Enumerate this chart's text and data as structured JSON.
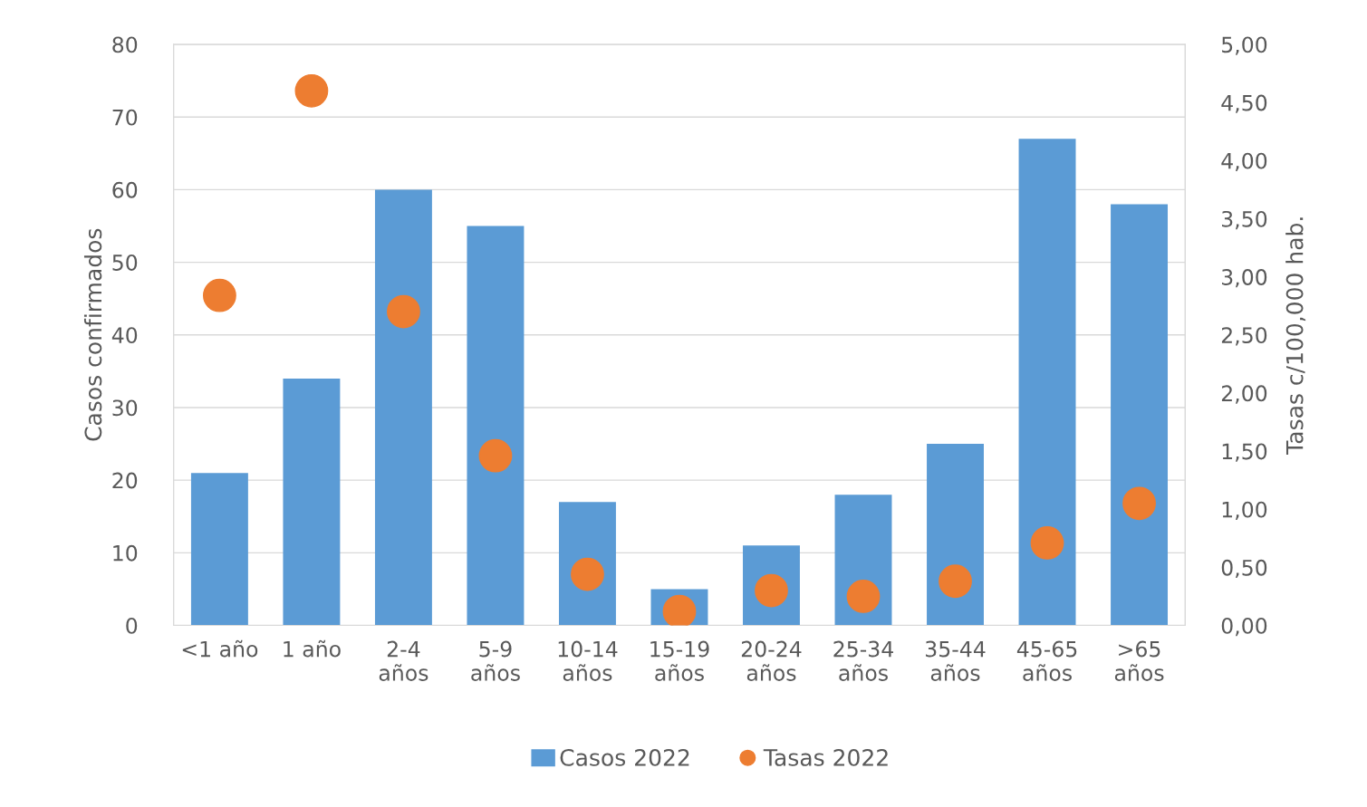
{
  "chart_data": {
    "type": "bar",
    "categories": [
      "<1 año",
      "1 año",
      "2-4\naños",
      "5-9\naños",
      "10-14\naños",
      "15-19\naños",
      "20-24\naños",
      "25-34\naños",
      "35-44\naños",
      "45-65\naños",
      ">65\naños"
    ],
    "ylabel": "Casos confirmados",
    "y2label": "Tasas c/100,000 hab.",
    "ylim": [
      0,
      80
    ],
    "yticks": [
      0,
      10,
      20,
      30,
      40,
      50,
      60,
      70,
      80
    ],
    "y2lim": [
      0,
      5
    ],
    "y2ticks": [
      {
        "value": 0,
        "label": "0,00"
      },
      {
        "value": 0.5,
        "label": "0,50"
      },
      {
        "value": 1,
        "label": "1,00"
      },
      {
        "value": 1.5,
        "label": "1,50"
      },
      {
        "value": 2,
        "label": "2,00"
      },
      {
        "value": 2.5,
        "label": "2,50"
      },
      {
        "value": 3,
        "label": "3,00"
      },
      {
        "value": 3.5,
        "label": "3,50"
      },
      {
        "value": 4,
        "label": "4,00"
      },
      {
        "value": 4.5,
        "label": "4,50"
      },
      {
        "value": 5,
        "label": "5,00"
      }
    ],
    "grid": "y",
    "legend": "bottom",
    "series": [
      {
        "name": "Casos 2022",
        "color": "#5b9bd5",
        "values": [
          21,
          34,
          60,
          55,
          17,
          5,
          11,
          18,
          25,
          67,
          58
        ]
      },
      {
        "name": "Tasas 2022",
        "type": "scatter",
        "axis": "y2",
        "marker": "circle",
        "color": "#ed7d31",
        "values": [
          2.84,
          4.6,
          2.7,
          1.46,
          0.44,
          0.12,
          0.3,
          0.25,
          0.38,
          0.71,
          1.05
        ]
      }
    ]
  }
}
